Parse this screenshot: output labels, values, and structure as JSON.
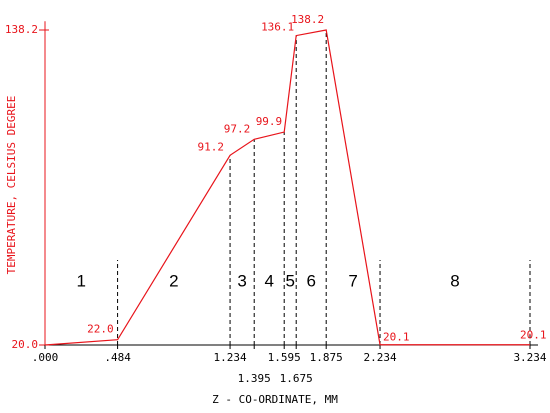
{
  "chart_data": {
    "type": "line",
    "x_label": "Z - CO-ORDINATE, MM",
    "y_label": "TEMPERATURE, CELSIUS DEGREE",
    "x": [
      0,
      0.484,
      1.234,
      1.395,
      1.595,
      1.675,
      1.875,
      2.234,
      3.234
    ],
    "series": [
      {
        "color": "#e8141b",
        "values": [
          20.0,
          22.0,
          91.2,
          97.2,
          99.9,
          136.1,
          138.2,
          20.1,
          20.1
        ],
        "value_labels": [
          null,
          "22.0",
          "91.2",
          "97.2",
          "99.9",
          "136.1",
          "138.2",
          "20.1",
          "20.1"
        ]
      }
    ],
    "xlim": [
      0,
      3.234
    ],
    "ylim": [
      20,
      140
    ],
    "xticks": [
      {
        "value": 0,
        "label": ".000"
      },
      {
        "value": 0.484,
        "label": ".484"
      },
      1.234,
      1.395,
      1.595,
      1.675,
      1.875,
      2.234,
      3.234
    ],
    "yticks": [
      {
        "value": 20,
        "label": "20.0"
      },
      138.2
    ],
    "regions": [
      "1",
      "2",
      "3",
      "4",
      "5",
      "6",
      "7",
      "8"
    ]
  }
}
